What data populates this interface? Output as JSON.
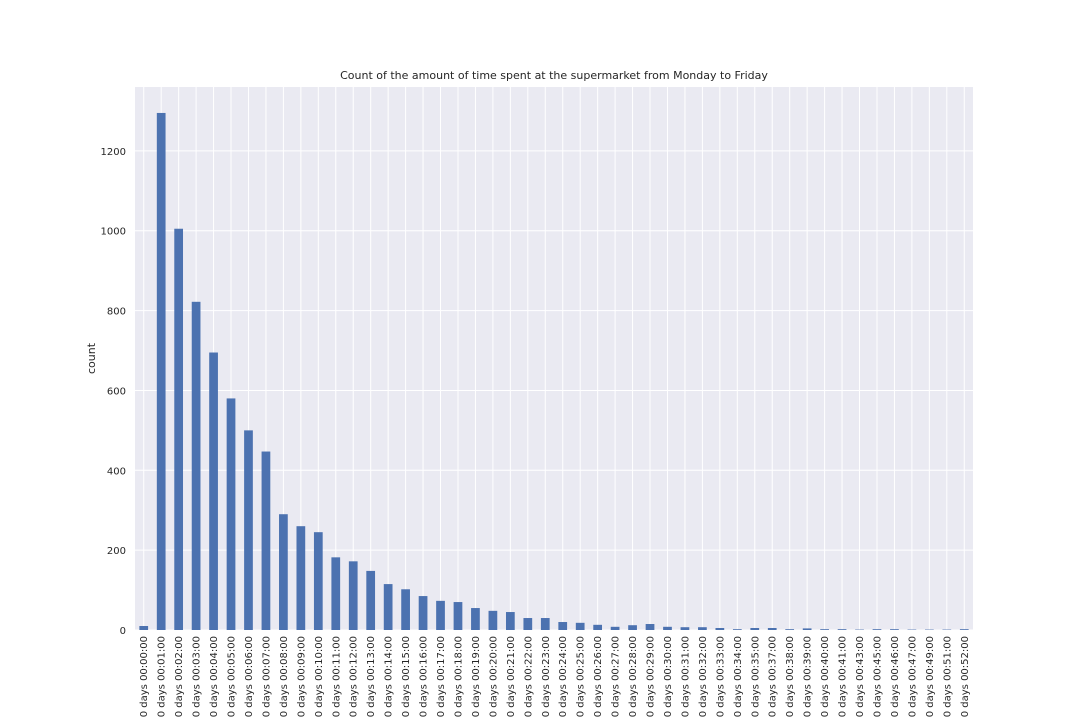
{
  "chart_data": {
    "type": "bar",
    "title": "Count of the amount of time spent at the supermarket from Monday to Friday",
    "xlabel": "",
    "ylabel": "count",
    "ylim": [
      0,
      1360
    ],
    "yticks": [
      0,
      200,
      400,
      600,
      800,
      1000,
      1200
    ],
    "grid": true,
    "legend": "none",
    "colors": {
      "bar": "#4c72b0",
      "plot_background": "#eaeaf2",
      "grid": "#ffffff",
      "text": "#262626"
    },
    "categories": [
      "0 days 00:00:00",
      "0 days 00:01:00",
      "0 days 00:02:00",
      "0 days 00:03:00",
      "0 days 00:04:00",
      "0 days 00:05:00",
      "0 days 00:06:00",
      "0 days 00:07:00",
      "0 days 00:08:00",
      "0 days 00:09:00",
      "0 days 00:10:00",
      "0 days 00:11:00",
      "0 days 00:12:00",
      "0 days 00:13:00",
      "0 days 00:14:00",
      "0 days 00:15:00",
      "0 days 00:16:00",
      "0 days 00:17:00",
      "0 days 00:18:00",
      "0 days 00:19:00",
      "0 days 00:20:00",
      "0 days 00:21:00",
      "0 days 00:22:00",
      "0 days 00:23:00",
      "0 days 00:24:00",
      "0 days 00:25:00",
      "0 days 00:26:00",
      "0 days 00:27:00",
      "0 days 00:28:00",
      "0 days 00:29:00",
      "0 days 00:30:00",
      "0 days 00:31:00",
      "0 days 00:32:00",
      "0 days 00:33:00",
      "0 days 00:34:00",
      "0 days 00:35:00",
      "0 days 00:37:00",
      "0 days 00:38:00",
      "0 days 00:39:00",
      "0 days 00:40:00",
      "0 days 00:41:00",
      "0 days 00:43:00",
      "0 days 00:45:00",
      "0 days 00:46:00",
      "0 days 00:47:00",
      "0 days 00:49:00",
      "0 days 00:51:00",
      "0 days 00:52:00"
    ],
    "values": [
      10,
      1295,
      1005,
      822,
      695,
      580,
      500,
      447,
      290,
      260,
      245,
      182,
      172,
      148,
      115,
      102,
      85,
      73,
      70,
      55,
      48,
      45,
      30,
      30,
      20,
      18,
      13,
      8,
      12,
      15,
      8,
      7,
      7,
      5,
      2,
      5,
      5,
      2,
      4,
      2,
      2,
      1,
      2,
      2,
      1,
      1,
      1,
      2
    ]
  }
}
